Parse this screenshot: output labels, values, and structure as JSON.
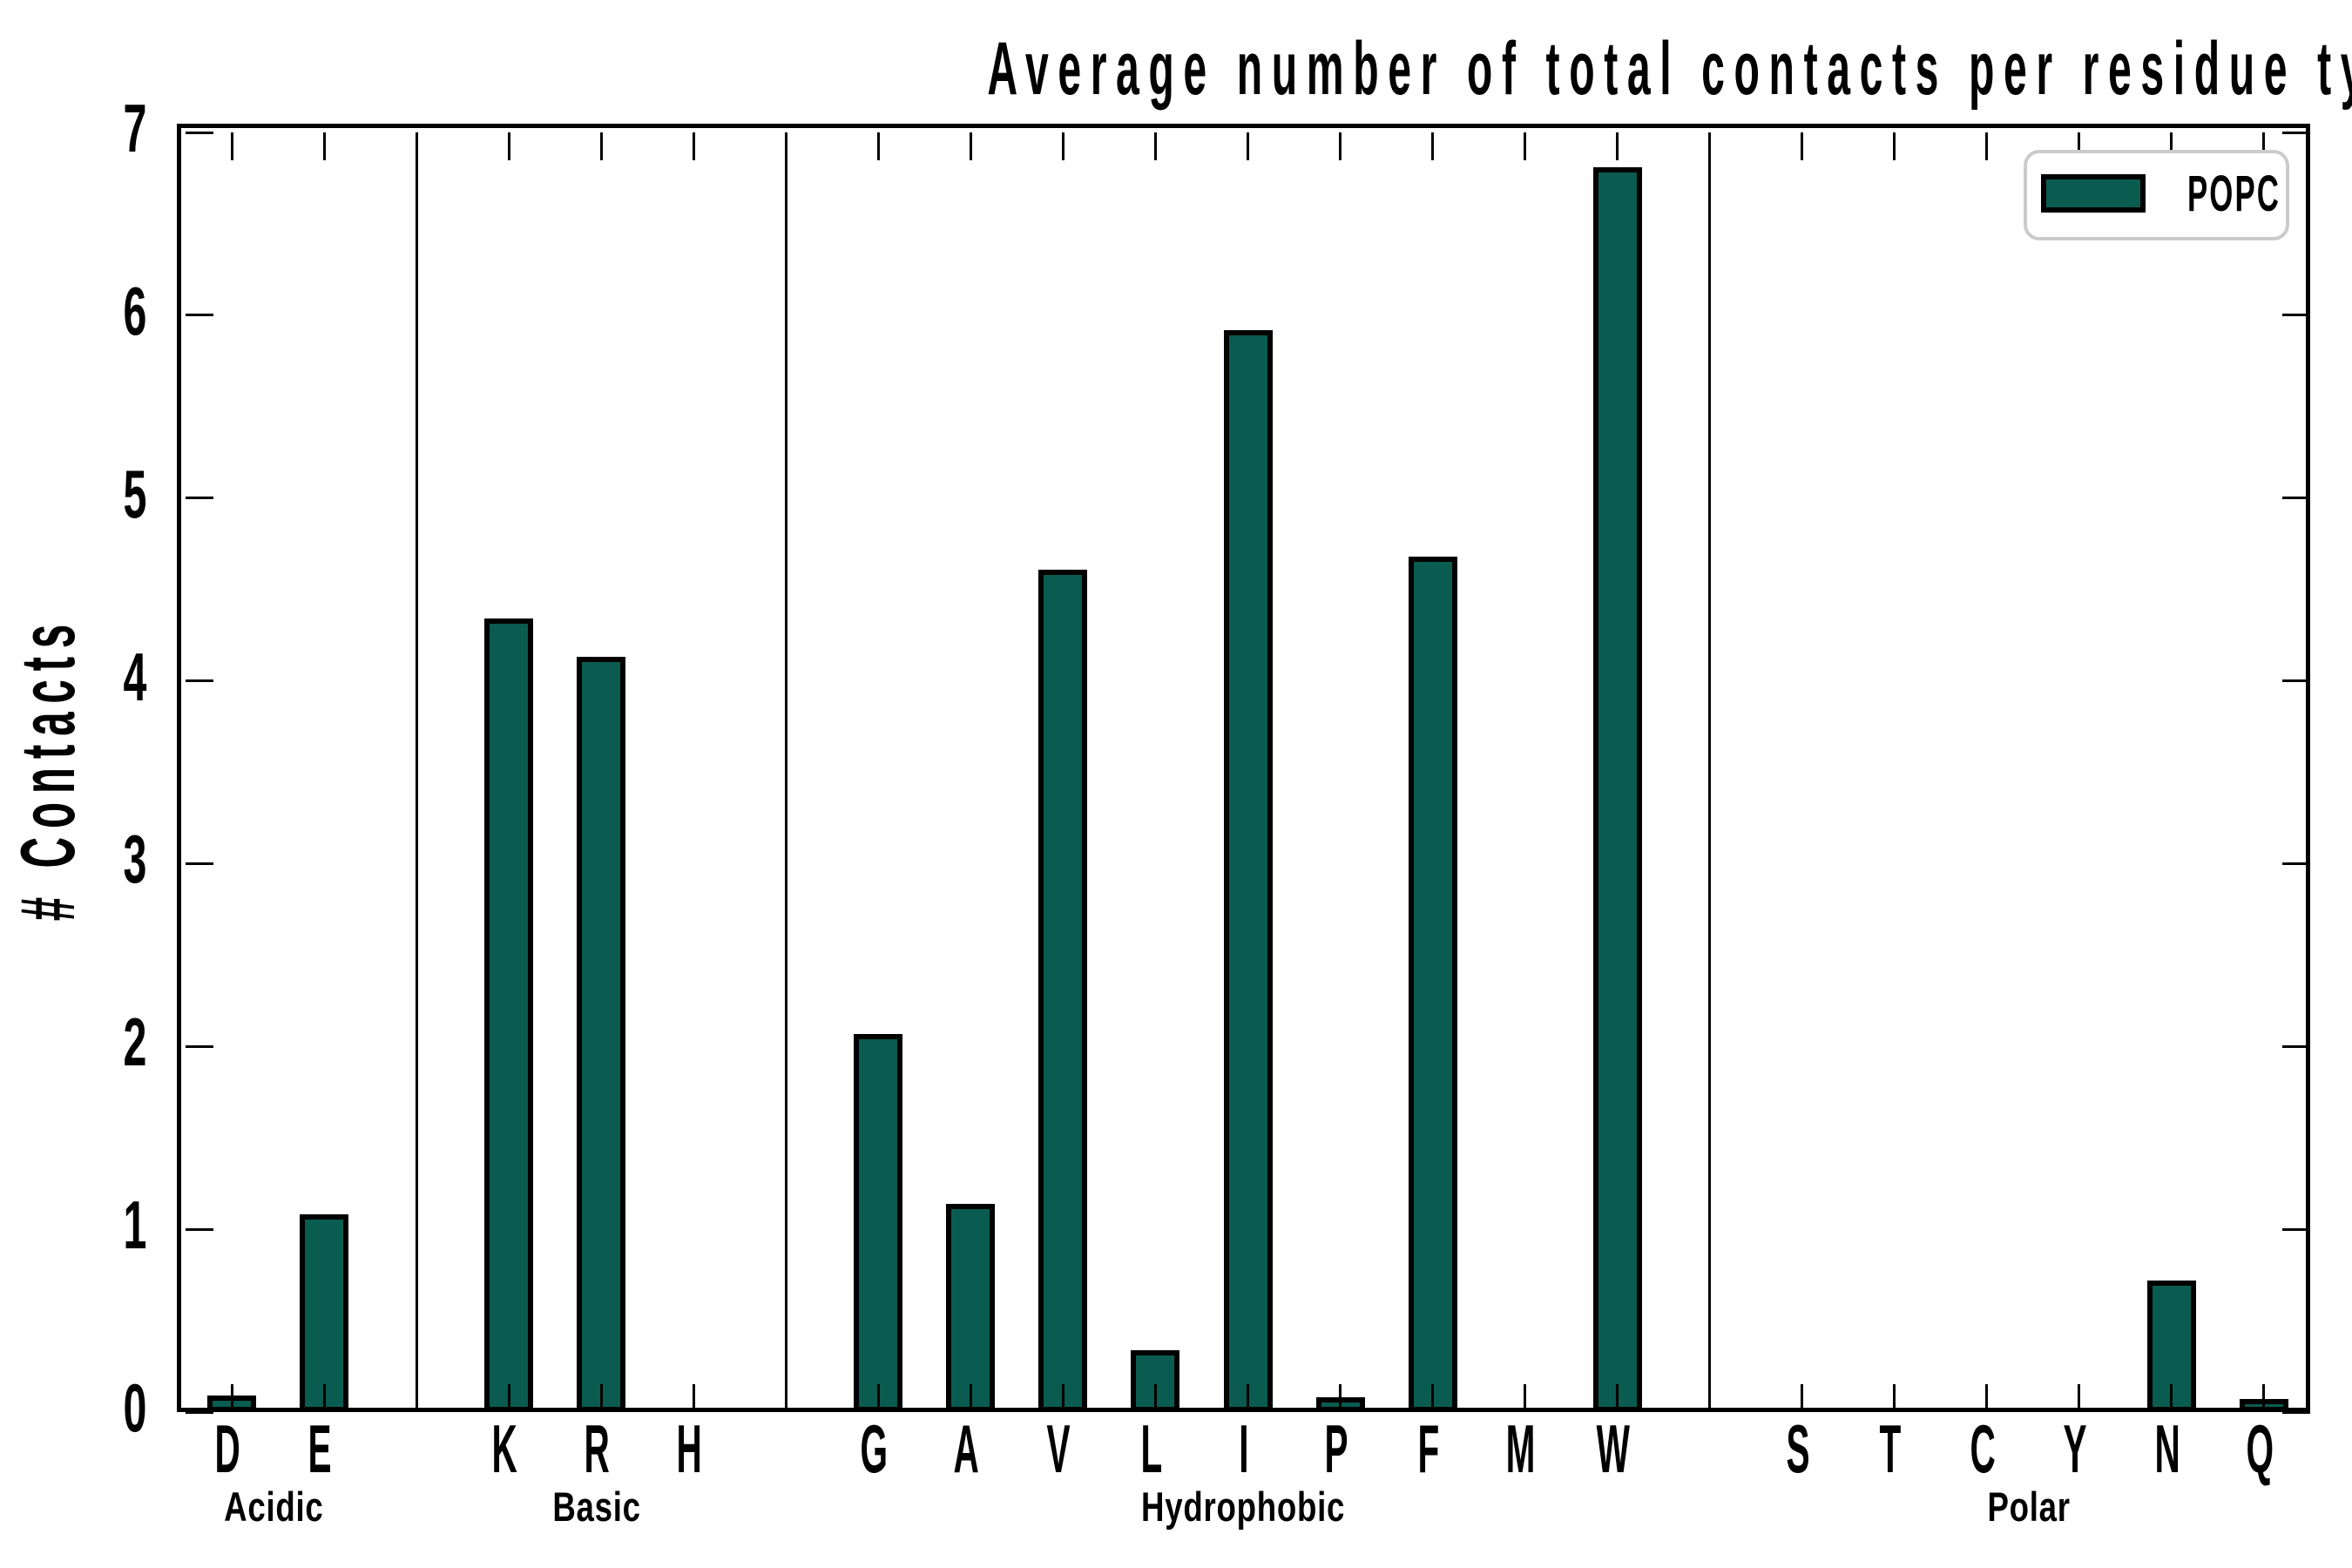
{
  "title": "Average number of total contacts per residue type",
  "ylabel": "# Contacts",
  "legend": {
    "label": "POPC"
  },
  "colors": {
    "bar_fill": "#0a5b50",
    "bar_edge": "#000000",
    "frame": "#000000",
    "legend_border": "#cbcbcb",
    "background": "#ffffff",
    "text": "#000000"
  },
  "chart_data": {
    "type": "bar",
    "title": "Average number of total contacts per residue type",
    "xlabel": "",
    "ylabel": "# Contacts",
    "ylim": [
      0,
      7
    ],
    "yticks": [
      0,
      1,
      2,
      3,
      4,
      5,
      6,
      7
    ],
    "grid": "off",
    "legend_position": "upper right",
    "legend_entries": [
      "POPC"
    ],
    "series_name": "POPC",
    "categories": [
      "D",
      "E",
      "K",
      "R",
      "H",
      "G",
      "A",
      "V",
      "L",
      "I",
      "P",
      "F",
      "M",
      "W",
      "S",
      "T",
      "C",
      "Y",
      "N",
      "Q"
    ],
    "values": [
      0.09,
      1.08,
      4.34,
      4.13,
      0.01,
      2.07,
      1.14,
      4.61,
      0.34,
      5.92,
      0.08,
      4.68,
      0.01,
      6.81,
      0.01,
      0.01,
      0.01,
      0.01,
      0.72,
      0.07
    ],
    "groups": [
      {
        "label": "Acidic",
        "residues": [
          "D",
          "E"
        ],
        "values": [
          0.09,
          1.08
        ]
      },
      {
        "label": "Basic",
        "residues": [
          "K",
          "R",
          "H"
        ],
        "values": [
          4.34,
          4.13,
          0.01
        ]
      },
      {
        "label": "Hydrophobic",
        "residues": [
          "G",
          "A",
          "V",
          "L",
          "I",
          "P",
          "F",
          "M",
          "W"
        ],
        "values": [
          2.07,
          1.14,
          4.61,
          0.34,
          5.92,
          0.08,
          4.68,
          0.01,
          6.81
        ]
      },
      {
        "label": "Polar",
        "residues": [
          "S",
          "T",
          "C",
          "Y",
          "N",
          "Q"
        ],
        "values": [
          0.01,
          0.01,
          0.01,
          0.01,
          0.72,
          0.07
        ]
      }
    ]
  }
}
